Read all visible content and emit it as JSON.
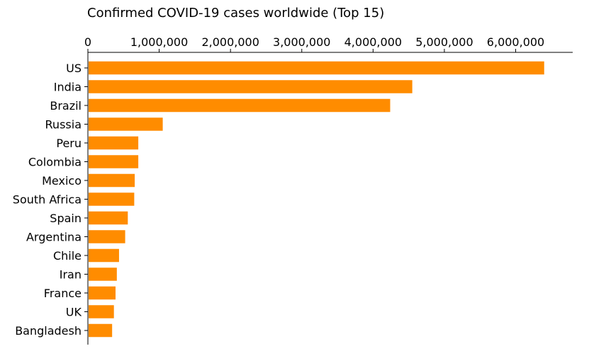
{
  "chart_data": {
    "type": "bar",
    "orientation": "horizontal",
    "title": "Confirmed COVID-19 cases worldwide (Top 15)",
    "xlabel": "",
    "ylabel": "",
    "xlim": [
      0,
      6800000
    ],
    "x_axis_position": "top",
    "x_ticks": [
      0,
      1000000,
      2000000,
      3000000,
      4000000,
      5000000,
      6000000
    ],
    "x_tick_labels": [
      "0",
      "1,000,000",
      "2,000,000",
      "3,000,000",
      "4,000,000",
      "5,000,000",
      "6,000,000"
    ],
    "grid": false,
    "bar_color": "#FF8C00",
    "categories": [
      "US",
      "India",
      "Brazil",
      "Russia",
      "Peru",
      "Colombia",
      "Mexico",
      "South Africa",
      "Spain",
      "Argentina",
      "Chile",
      "Iran",
      "France",
      "UK",
      "Bangladesh"
    ],
    "values": [
      6390000,
      4540000,
      4230000,
      1040000,
      697000,
      697000,
      647000,
      640000,
      550000,
      513000,
      427000,
      396000,
      378000,
      355000,
      330000
    ]
  }
}
